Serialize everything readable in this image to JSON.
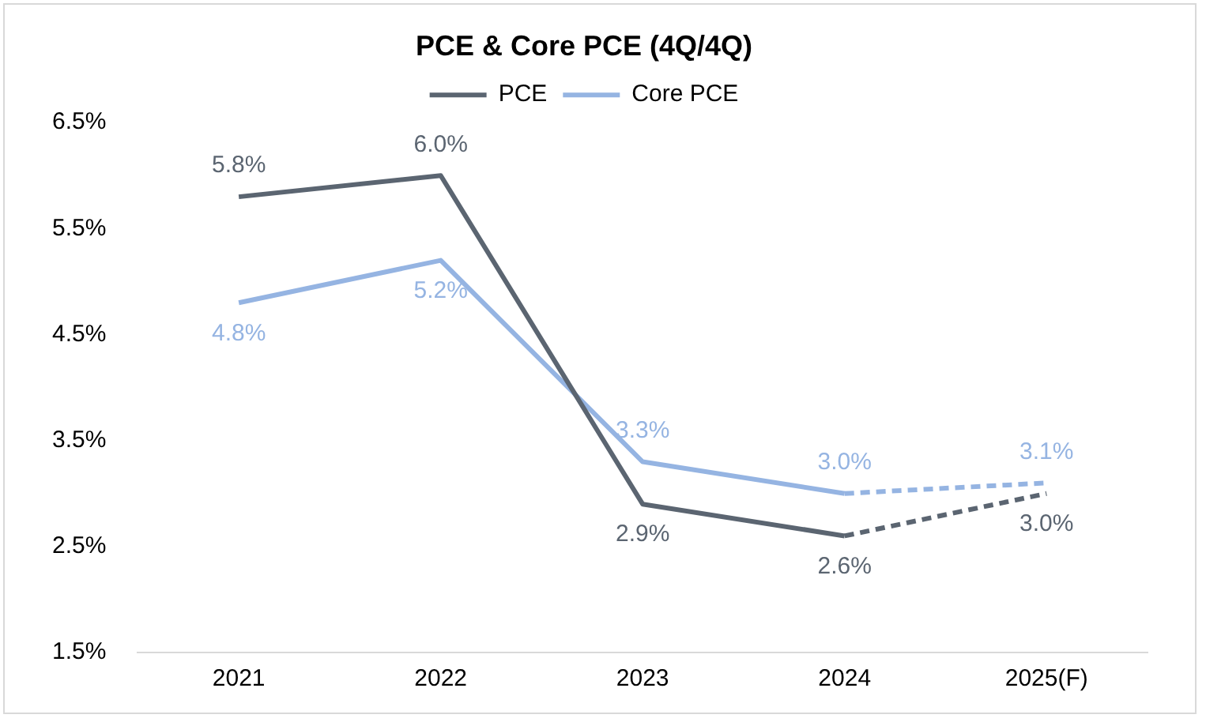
{
  "chart_data": {
    "type": "line",
    "title": "PCE & Core PCE (4Q/4Q)",
    "categories": [
      "2021",
      "2022",
      "2023",
      "2024",
      "2025(F)"
    ],
    "series": [
      {
        "name": "PCE",
        "color": "#5b6571",
        "values": [
          5.8,
          6.0,
          2.9,
          2.6,
          null
        ],
        "value_labels": [
          "5.8%",
          "6.0%",
          "2.9%",
          "2.6%",
          null
        ]
      },
      {
        "name": "Core PCE",
        "color": "#95b4e2",
        "values": [
          4.8,
          5.2,
          3.3,
          3.0,
          null
        ],
        "value_labels": [
          "4.8%",
          "5.2%",
          "3.3%",
          "3.0%",
          null
        ]
      },
      {
        "color": "#5b6571",
        "values": [
          null,
          null,
          null,
          2.6,
          3.0
        ],
        "line_style": "dashed",
        "value_labels": [
          null,
          null,
          null,
          null,
          "3.0%"
        ]
      },
      {
        "color": "#95b4e2",
        "values": [
          null,
          null,
          null,
          3.0,
          3.1
        ],
        "line_style": "dashed",
        "value_labels": [
          null,
          null,
          null,
          null,
          "3.1%"
        ]
      }
    ],
    "ylim": [
      1.5,
      6.5
    ],
    "yticks": [
      {
        "value": 1.5,
        "label": "1.5%"
      },
      {
        "value": 2.5,
        "label": "2.5%"
      },
      {
        "value": 3.5,
        "label": "3.5%"
      },
      {
        "value": 4.5,
        "label": "4.5%"
      },
      {
        "value": 5.5,
        "label": "5.5%"
      },
      {
        "value": 6.5,
        "label": "6.5%"
      }
    ],
    "grid": false,
    "legend": "top",
    "marker": "none",
    "line_style": "solid"
  }
}
